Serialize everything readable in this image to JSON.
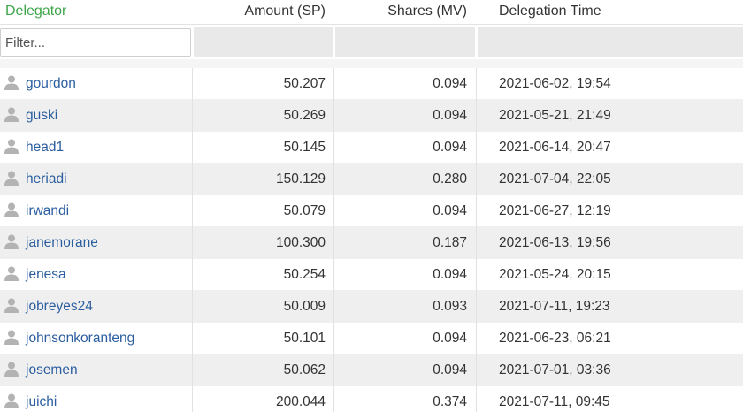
{
  "header": {
    "delegator": "Delegator",
    "amount": "Amount (SP)",
    "shares": "Shares (MV)",
    "time": "Delegation Time"
  },
  "filter": {
    "placeholder": "Filter..."
  },
  "colors": {
    "sorted_header": "#3fa64a",
    "link": "#2a5d9f",
    "row_alt": "#efefef"
  },
  "rows": [
    {
      "name": "gourdon",
      "amount": "50.207",
      "shares": "0.094",
      "time": "2021-06-02, 19:54"
    },
    {
      "name": "guski",
      "amount": "50.269",
      "shares": "0.094",
      "time": "2021-05-21, 21:49"
    },
    {
      "name": "head1",
      "amount": "50.145",
      "shares": "0.094",
      "time": "2021-06-14, 20:47"
    },
    {
      "name": "heriadi",
      "amount": "150.129",
      "shares": "0.280",
      "time": "2021-07-04, 22:05"
    },
    {
      "name": "irwandi",
      "amount": "50.079",
      "shares": "0.094",
      "time": "2021-06-27, 12:19"
    },
    {
      "name": "janemorane",
      "amount": "100.300",
      "shares": "0.187",
      "time": "2021-06-13, 19:56"
    },
    {
      "name": "jenesa",
      "amount": "50.254",
      "shares": "0.094",
      "time": "2021-05-24, 20:15"
    },
    {
      "name": "jobreyes24",
      "amount": "50.009",
      "shares": "0.093",
      "time": "2021-07-11, 19:23"
    },
    {
      "name": "johnsonkoranteng",
      "amount": "50.101",
      "shares": "0.094",
      "time": "2021-06-23, 06:21"
    },
    {
      "name": "josemen",
      "amount": "50.062",
      "shares": "0.094",
      "time": "2021-07-01, 03:36"
    },
    {
      "name": "juichi",
      "amount": "200.044",
      "shares": "0.374",
      "time": "2021-07-11, 09:45"
    }
  ]
}
